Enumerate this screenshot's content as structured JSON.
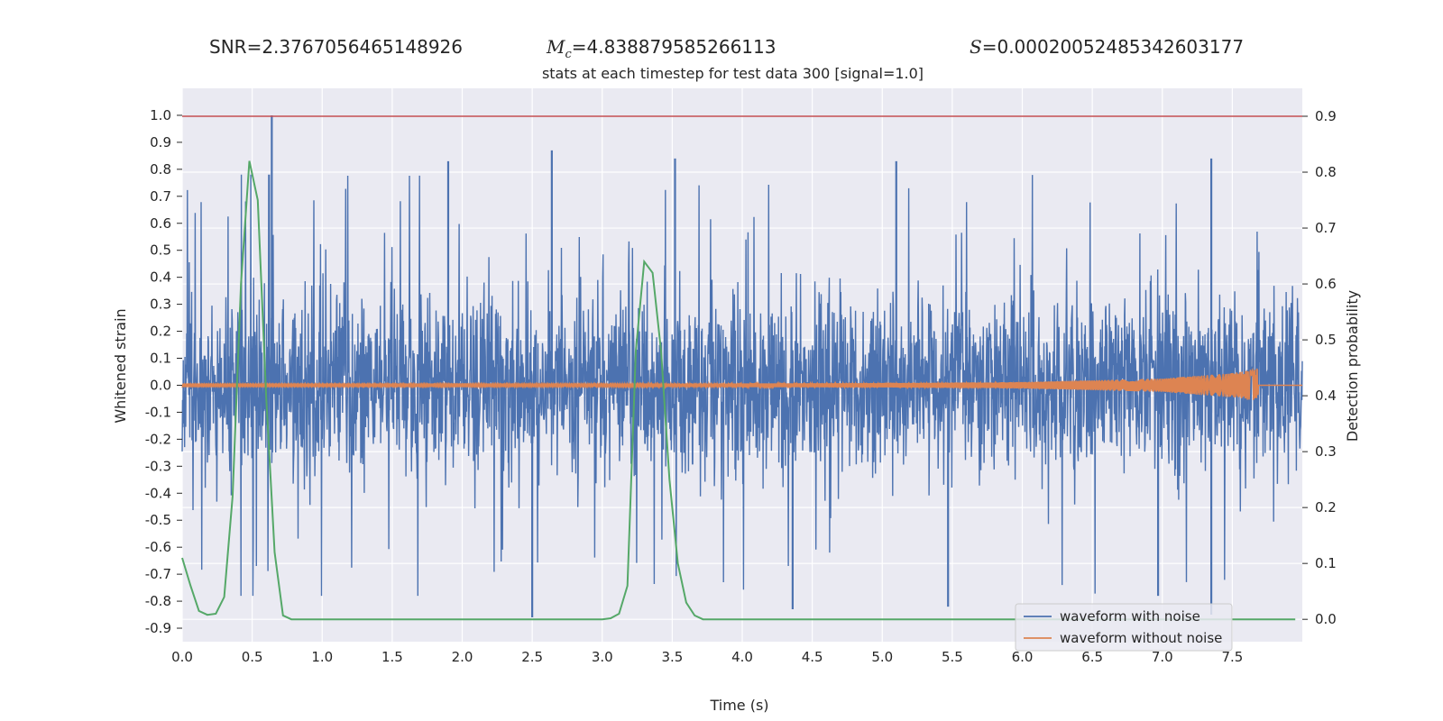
{
  "header": {
    "snr_label": "SNR",
    "snr_value": "2.3767056465148926",
    "mc_symbol": "M",
    "mc_subscript": "c",
    "mc_value": "4.838879585266113",
    "s_symbol": "S",
    "s_value": "0.00020052485342603177",
    "equals": "="
  },
  "chart_data": {
    "type": "line",
    "title": "stats at each timestep for test data 300 [signal=1.0]",
    "xlabel": "Time (s)",
    "ylabel": "Whitened strain",
    "y2label": "Detection probability",
    "xlim": [
      0.0,
      8.0
    ],
    "ylim": [
      -0.95,
      1.1
    ],
    "y2lim": [
      -0.04,
      0.95
    ],
    "x_ticks": [
      "0.0",
      "0.5",
      "1.0",
      "1.5",
      "2.0",
      "2.5",
      "3.0",
      "3.5",
      "4.0",
      "4.5",
      "5.0",
      "5.5",
      "6.0",
      "6.5",
      "7.0",
      "7.5"
    ],
    "y_ticks": [
      "1.0",
      "0.9",
      "0.8",
      "0.7",
      "0.6",
      "0.5",
      "0.4",
      "0.3",
      "0.2",
      "0.1",
      "0.0",
      "-0.1",
      "-0.2",
      "-0.3",
      "-0.4",
      "-0.5",
      "-0.6",
      "-0.7",
      "-0.8",
      "-0.9"
    ],
    "y2_ticks": [
      "0.9",
      "0.8",
      "0.7",
      "0.6",
      "0.5",
      "0.4",
      "0.3",
      "0.2",
      "0.1",
      "0.0"
    ],
    "grid": true,
    "legend_position": "lower-right",
    "series": [
      {
        "name": "waveform with noise",
        "axis": "left",
        "color": "#4c72b0",
        "description_envelope": {
          "max_abs": 1.0,
          "typical_abs": 0.4
        },
        "peak_points": [
          [
            0.64,
            1.0
          ],
          [
            2.64,
            0.87
          ],
          [
            3.52,
            0.84
          ],
          [
            1.9,
            0.83
          ],
          [
            5.1,
            0.83
          ],
          [
            7.35,
            0.84
          ],
          [
            2.5,
            -0.86
          ],
          [
            4.36,
            -0.83
          ],
          [
            5.47,
            -0.82
          ],
          [
            7.35,
            -0.85
          ],
          [
            6.97,
            -0.78
          ]
        ]
      },
      {
        "name": "waveform without noise",
        "axis": "left",
        "color": "#dd8452",
        "envelope": [
          [
            0.0,
            0.005
          ],
          [
            3.0,
            0.005
          ],
          [
            5.0,
            0.008
          ],
          [
            6.0,
            0.012
          ],
          [
            7.0,
            0.025
          ],
          [
            7.5,
            0.045
          ],
          [
            7.68,
            0.06
          ],
          [
            7.69,
            0.0
          ],
          [
            8.0,
            0.0
          ]
        ]
      },
      {
        "axis": "right",
        "color": "#55a868",
        "x": [
          0.0,
          0.06,
          0.12,
          0.18,
          0.24,
          0.3,
          0.36,
          0.42,
          0.48,
          0.54,
          0.6,
          0.66,
          0.72,
          0.78,
          1.0,
          2.0,
          3.0,
          3.06,
          3.12,
          3.18,
          3.24,
          3.3,
          3.36,
          3.42,
          3.48,
          3.54,
          3.6,
          3.66,
          3.72,
          4.0,
          5.0,
          6.0,
          7.0,
          7.95
        ],
        "y": [
          0.11,
          0.06,
          0.015,
          0.008,
          0.01,
          0.04,
          0.22,
          0.6,
          0.82,
          0.75,
          0.4,
          0.12,
          0.007,
          0.0,
          0.0,
          0.0,
          0.0,
          0.002,
          0.01,
          0.06,
          0.48,
          0.64,
          0.62,
          0.48,
          0.25,
          0.1,
          0.03,
          0.007,
          0.0,
          0.0,
          0.0,
          0.0,
          0.0,
          0.0
        ]
      },
      {
        "axis": "right",
        "color": "#c44e52",
        "x": [
          0.0,
          8.0
        ],
        "y": [
          0.9,
          0.9
        ]
      }
    ]
  }
}
